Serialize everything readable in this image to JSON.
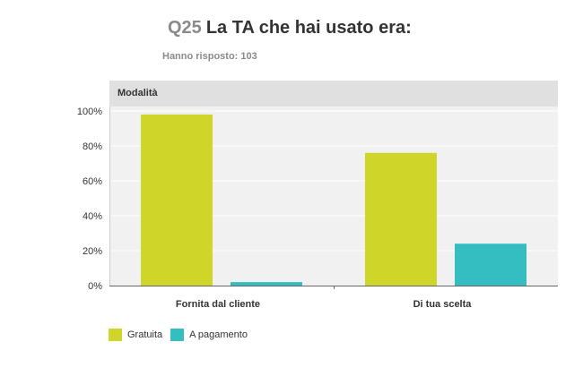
{
  "title": {
    "number": "Q25",
    "text": "La TA che hai usato era:"
  },
  "subtitle": "Hanno risposto: 103",
  "colors": {
    "gratuita": "#d0d52a",
    "pagamento": "#35bec2",
    "plot_bg": "#f1f1f1",
    "header_bg": "#e0e0e0",
    "grid": "#ffffff",
    "axis": "#666666"
  },
  "chart_data": {
    "type": "bar",
    "panel_title": "Modalità",
    "categories": [
      "Fornita dal cliente",
      "Di tua scelta"
    ],
    "series": [
      {
        "name": "Gratuita",
        "color": "#d0d52a",
        "values": [
          98,
          76
        ]
      },
      {
        "name": "A pagamento",
        "color": "#35bec2",
        "values": [
          2,
          24
        ]
      }
    ],
    "yticks": [
      "0%",
      "20%",
      "40%",
      "60%",
      "80%",
      "100%"
    ],
    "ylim": [
      0,
      100
    ],
    "grid": true,
    "legend": "bottom-left"
  }
}
